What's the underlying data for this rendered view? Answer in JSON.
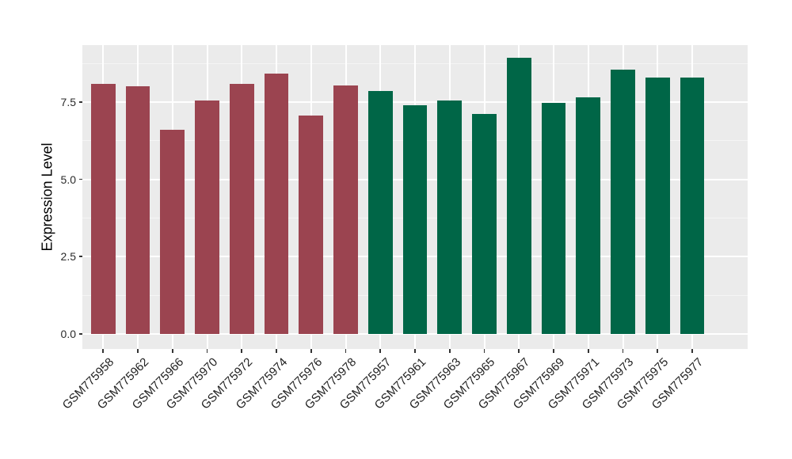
{
  "figure": {
    "background_color": "#ffffff",
    "panel_background_color": "#ebebeb",
    "gridline_color": "#ffffff",
    "tick_mark_color": "#333333",
    "axis_text_color": "#2b2b2b",
    "axis_title_color": "#000000"
  },
  "chart_data": {
    "type": "bar",
    "title": "",
    "xlabel": "",
    "ylabel": "Expression Level",
    "categories": [
      "GSM775958",
      "GSM775962",
      "GSM775966",
      "GSM775970",
      "GSM775972",
      "GSM775974",
      "GSM775976",
      "GSM775978",
      "GSM775957",
      "GSM775961",
      "GSM775963",
      "GSM775965",
      "GSM775967",
      "GSM775969",
      "GSM775971",
      "GSM775973",
      "GSM775975",
      "GSM775977"
    ],
    "values": [
      8.08,
      8.01,
      6.6,
      7.55,
      8.09,
      8.42,
      7.05,
      8.03,
      7.85,
      7.4,
      7.55,
      7.12,
      8.92,
      7.48,
      7.65,
      8.55,
      8.3,
      8.28
    ],
    "groups": [
      "maroon",
      "maroon",
      "maroon",
      "maroon",
      "maroon",
      "maroon",
      "maroon",
      "maroon",
      "green",
      "green",
      "green",
      "green",
      "green",
      "green",
      "green",
      "green",
      "green",
      "green"
    ],
    "group_colors": {
      "maroon": "#9b4450",
      "green": "#006647"
    },
    "ylim": [
      -0.49,
      9.34
    ],
    "yticks": [
      0,
      2.5,
      5,
      7.5
    ],
    "ytick_labels": [
      "0.0",
      "2.5",
      "5.0",
      "7.5"
    ],
    "yticks_minor": [
      1.25,
      3.75,
      6.25,
      8.75
    ],
    "bar_width_frac": 0.7,
    "grid": "major+minor, white on gray panel",
    "legend": null,
    "x_label_rotation_deg": 45
  }
}
